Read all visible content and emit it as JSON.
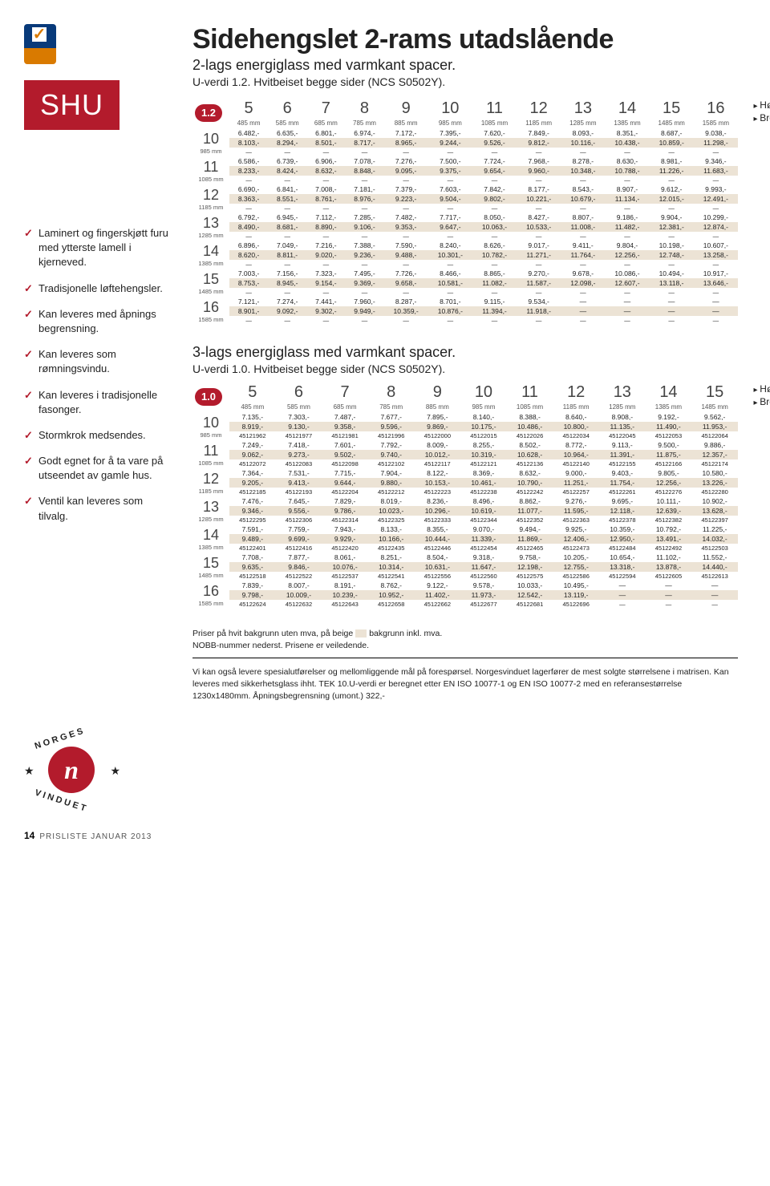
{
  "badge": "SHU",
  "title": "Sidehengslet 2-rams utadslående",
  "sub1": "2-lags energiglass med varmkant spacer.",
  "sub2": "U-verdi 1.2. Hvitbeiset begge sider (NCS S0502Y).",
  "checks": [
    "Laminert og fingerskjøtt furu med ytterste lamell i kjerneved.",
    "Tradisjonelle løftehengsler.",
    "Kan leveres med åpnings begrensning.",
    "Kan leveres som rømningsvindu.",
    "Kan leveres i tradisjonelle fasonger.",
    "Stormkrok medsendes.",
    "Godt egnet for å ta vare på utseendet av gamle hus.",
    "Ventil kan leveres som tilvalg."
  ],
  "hb_h": "Høyde",
  "hb_b": "Bredde",
  "t1": {
    "badge": "1.2",
    "cols": [
      {
        "n": "5",
        "mm": "485 mm"
      },
      {
        "n": "6",
        "mm": "585 mm"
      },
      {
        "n": "7",
        "mm": "685 mm"
      },
      {
        "n": "8",
        "mm": "785 mm"
      },
      {
        "n": "9",
        "mm": "885 mm"
      },
      {
        "n": "10",
        "mm": "985 mm"
      },
      {
        "n": "11",
        "mm": "1085 mm"
      },
      {
        "n": "12",
        "mm": "1185 mm"
      },
      {
        "n": "13",
        "mm": "1285 mm"
      },
      {
        "n": "14",
        "mm": "1385 mm"
      },
      {
        "n": "15",
        "mm": "1485 mm"
      },
      {
        "n": "16",
        "mm": "1585 mm"
      }
    ],
    "rows": [
      {
        "n": "10",
        "mm": "985 mm",
        "a": [
          "6.482,-",
          "6.635,-",
          "6.801,-",
          "6.974,-",
          "7.172,-",
          "7.395,-",
          "7.620,-",
          "7.849,-",
          "8.093,-",
          "8.351,-",
          "8.687,-",
          "9.038,-"
        ],
        "b": [
          "8.103,-",
          "8.294,-",
          "8.501,-",
          "8.717,-",
          "8.965,-",
          "9.244,-",
          "9.526,-",
          "9.812,-",
          "10.116,-",
          "10.438,-",
          "10.859,-",
          "11.298,-"
        ],
        "c": [
          "—",
          "—",
          "—",
          "—",
          "—",
          "—",
          "—",
          "—",
          "—",
          "—",
          "—",
          "—"
        ]
      },
      {
        "n": "11",
        "mm": "1085 mm",
        "a": [
          "6.586,-",
          "6.739,-",
          "6.906,-",
          "7.078,-",
          "7.276,-",
          "7.500,-",
          "7.724,-",
          "7.968,-",
          "8.278,-",
          "8.630,-",
          "8.981,-",
          "9.346,-"
        ],
        "b": [
          "8.233,-",
          "8.424,-",
          "8.632,-",
          "8.848,-",
          "9.095,-",
          "9.375,-",
          "9.654,-",
          "9.960,-",
          "10.348,-",
          "10.788,-",
          "11.226,-",
          "11.683,-"
        ],
        "c": [
          "—",
          "—",
          "—",
          "—",
          "—",
          "—",
          "—",
          "—",
          "—",
          "—",
          "—",
          "—"
        ]
      },
      {
        "n": "12",
        "mm": "1185 mm",
        "a": [
          "6.690,-",
          "6.841,-",
          "7.008,-",
          "7.181,-",
          "7.379,-",
          "7.603,-",
          "7.842,-",
          "8.177,-",
          "8.543,-",
          "8.907,-",
          "9.612,-",
          "9.993,-"
        ],
        "b": [
          "8.363,-",
          "8.551,-",
          "8.761,-",
          "8.976,-",
          "9.223,-",
          "9.504,-",
          "9.802,-",
          "10.221,-",
          "10.679,-",
          "11.134,-",
          "12.015,-",
          "12.491,-"
        ],
        "c": [
          "—",
          "—",
          "—",
          "—",
          "—",
          "—",
          "—",
          "—",
          "—",
          "—",
          "—",
          "—"
        ]
      },
      {
        "n": "13",
        "mm": "1285 mm",
        "a": [
          "6.792,-",
          "6.945,-",
          "7.112,-",
          "7.285,-",
          "7.482,-",
          "7.717,-",
          "8.050,-",
          "8.427,-",
          "8.807,-",
          "9.186,-",
          "9.904,-",
          "10.299,-"
        ],
        "b": [
          "8.490,-",
          "8.681,-",
          "8.890,-",
          "9.106,-",
          "9.353,-",
          "9.647,-",
          "10.063,-",
          "10.533,-",
          "11.008,-",
          "11.482,-",
          "12.381,-",
          "12.874,-"
        ],
        "c": [
          "—",
          "—",
          "—",
          "—",
          "—",
          "—",
          "—",
          "—",
          "—",
          "—",
          "—",
          "—"
        ]
      },
      {
        "n": "14",
        "mm": "1385 mm",
        "a": [
          "6.896,-",
          "7.049,-",
          "7.216,-",
          "7.388,-",
          "7.590,-",
          "8.240,-",
          "8.626,-",
          "9.017,-",
          "9.411,-",
          "9.804,-",
          "10.198,-",
          "10.607,-"
        ],
        "b": [
          "8.620,-",
          "8.811,-",
          "9.020,-",
          "9.236,-",
          "9.488,-",
          "10.301,-",
          "10.782,-",
          "11.271,-",
          "11.764,-",
          "12.256,-",
          "12.748,-",
          "13.258,-"
        ],
        "c": [
          "—",
          "—",
          "—",
          "—",
          "—",
          "—",
          "—",
          "—",
          "—",
          "—",
          "—",
          "—"
        ]
      },
      {
        "n": "15",
        "mm": "1485 mm",
        "a": [
          "7.003,-",
          "7.156,-",
          "7.323,-",
          "7.495,-",
          "7.726,-",
          "8.466,-",
          "8.865,-",
          "9.270,-",
          "9.678,-",
          "10.086,-",
          "10.494,-",
          "10.917,-"
        ],
        "b": [
          "8.753,-",
          "8.945,-",
          "9.154,-",
          "9.369,-",
          "9.658,-",
          "10.581,-",
          "11.082,-",
          "11.587,-",
          "12.098,-",
          "12.607,-",
          "13.118,-",
          "13.646,-"
        ],
        "c": [
          "—",
          "—",
          "—",
          "—",
          "—",
          "—",
          "—",
          "—",
          "—",
          "—",
          "—",
          "—"
        ]
      },
      {
        "n": "16",
        "mm": "1585 mm",
        "a": [
          "7.121,-",
          "7.274,-",
          "7.441,-",
          "7.960,-",
          "8.287,-",
          "8.701,-",
          "9.115,-",
          "9.534,-",
          "—",
          "—",
          "—",
          "—"
        ],
        "b": [
          "8.901,-",
          "9.092,-",
          "9.302,-",
          "9.949,-",
          "10.359,-",
          "10.876,-",
          "11.394,-",
          "11.918,-",
          "—",
          "—",
          "—",
          "—"
        ],
        "c": [
          "—",
          "—",
          "—",
          "—",
          "—",
          "—",
          "—",
          "—",
          "—",
          "—",
          "—",
          "—"
        ]
      }
    ]
  },
  "sec3_h": "3-lags energiglass med varmkant spacer.",
  "sec3_s": "U-verdi 1.0. Hvitbeiset begge sider (NCS S0502Y).",
  "t2": {
    "badge": "1.0",
    "cols": [
      {
        "n": "5",
        "mm": "485 mm"
      },
      {
        "n": "6",
        "mm": "585 mm"
      },
      {
        "n": "7",
        "mm": "685 mm"
      },
      {
        "n": "8",
        "mm": "785 mm"
      },
      {
        "n": "9",
        "mm": "885 mm"
      },
      {
        "n": "10",
        "mm": "985 mm"
      },
      {
        "n": "11",
        "mm": "1085 mm"
      },
      {
        "n": "12",
        "mm": "1185 mm"
      },
      {
        "n": "13",
        "mm": "1285 mm"
      },
      {
        "n": "14",
        "mm": "1385 mm"
      },
      {
        "n": "15",
        "mm": "1485 mm"
      }
    ],
    "rows": [
      {
        "n": "10",
        "mm": "985 mm",
        "a": [
          "7.135,-",
          "7.303,-",
          "7.487,-",
          "7.677,-",
          "7.895,-",
          "8.140,-",
          "8.388,-",
          "8.640,-",
          "8.908,-",
          "9.192,-",
          "9.562,-"
        ],
        "b": [
          "8.919,-",
          "9.130,-",
          "9.358,-",
          "9.596,-",
          "9.869,-",
          "10.175,-",
          "10.486,-",
          "10.800,-",
          "11.135,-",
          "11.490,-",
          "11.953,-"
        ],
        "c": [
          "45121962",
          "45121977",
          "45121981",
          "45121996",
          "45122000",
          "45122015",
          "45122026",
          "45122034",
          "45122045",
          "45122053",
          "45122064"
        ]
      },
      {
        "n": "11",
        "mm": "1085 mm",
        "a": [
          "7.249,-",
          "7.418,-",
          "7.601,-",
          "7.792,-",
          "8.009,-",
          "8.255,-",
          "8.502,-",
          "8.772,-",
          "9.113,-",
          "9.500,-",
          "9.886,-"
        ],
        "b": [
          "9.062,-",
          "9.273,-",
          "9.502,-",
          "9.740,-",
          "10.012,-",
          "10.319,-",
          "10.628,-",
          "10.964,-",
          "11.391,-",
          "11.875,-",
          "12.357,-"
        ],
        "c": [
          "45122072",
          "45122083",
          "45122098",
          "45122102",
          "45122117",
          "45122121",
          "45122136",
          "45122140",
          "45122155",
          "45122166",
          "45122174"
        ]
      },
      {
        "n": "12",
        "mm": "1185 mm",
        "a": [
          "7.364,-",
          "7.531,-",
          "7.715,-",
          "7.904,-",
          "8.122,-",
          "8.369,-",
          "8.632,-",
          "9.000,-",
          "9.403,-",
          "9.805,-",
          "10.580,-"
        ],
        "b": [
          "9.205,-",
          "9.413,-",
          "9.644,-",
          "9.880,-",
          "10.153,-",
          "10.461,-",
          "10.790,-",
          "11.251,-",
          "11.754,-",
          "12.256,-",
          "13.226,-"
        ],
        "c": [
          "45122185",
          "45122193",
          "45122204",
          "45122212",
          "45122223",
          "45122238",
          "45122242",
          "45122257",
          "45122261",
          "45122276",
          "45122280"
        ]
      },
      {
        "n": "13",
        "mm": "1285 mm",
        "a": [
          "7.476,-",
          "7.645,-",
          "7.829,-",
          "8.019,-",
          "8.236,-",
          "8.496,-",
          "8.862,-",
          "9.276,-",
          "9.695,-",
          "10.111,-",
          "10.902,-"
        ],
        "b": [
          "9.346,-",
          "9.556,-",
          "9.786,-",
          "10.023,-",
          "10.296,-",
          "10.619,-",
          "11.077,-",
          "11.595,-",
          "12.118,-",
          "12.639,-",
          "13.628,-"
        ],
        "c": [
          "45122295",
          "45122306",
          "45122314",
          "45122325",
          "45122333",
          "45122344",
          "45122352",
          "45122363",
          "45122378",
          "45122382",
          "45122397"
        ]
      },
      {
        "n": "14",
        "mm": "1385 mm",
        "a": [
          "7.591,-",
          "7.759,-",
          "7.943,-",
          "8.133,-",
          "8.355,-",
          "9.070,-",
          "9.494,-",
          "9.925,-",
          "10.359,-",
          "10.792,-",
          "11.225,-"
        ],
        "b": [
          "9.489,-",
          "9.699,-",
          "9.929,-",
          "10.166,-",
          "10.444,-",
          "11.339,-",
          "11.869,-",
          "12.406,-",
          "12.950,-",
          "13.491,-",
          "14.032,-"
        ],
        "c": [
          "45122401",
          "45122416",
          "45122420",
          "45122435",
          "45122446",
          "45122454",
          "45122465",
          "45122473",
          "45122484",
          "45122492",
          "45122503"
        ]
      },
      {
        "n": "15",
        "mm": "1485 mm",
        "a": [
          "7.708,-",
          "7.877,-",
          "8.061,-",
          "8.251,-",
          "8.504,-",
          "9.318,-",
          "9.758,-",
          "10.205,-",
          "10.654,-",
          "11.102,-",
          "11.552,-"
        ],
        "b": [
          "9.635,-",
          "9.846,-",
          "10.076,-",
          "10.314,-",
          "10.631,-",
          "11.647,-",
          "12.198,-",
          "12.755,-",
          "13.318,-",
          "13.878,-",
          "14.440,-"
        ],
        "c": [
          "45122518",
          "45122522",
          "45122537",
          "45122541",
          "45122556",
          "45122560",
          "45122575",
          "45122586",
          "45122594",
          "45122605",
          "45122613"
        ]
      },
      {
        "n": "16",
        "mm": "1585 mm",
        "a": [
          "7.839,-",
          "8.007,-",
          "8.191,-",
          "8.762,-",
          "9.122,-",
          "9.578,-",
          "10.033,-",
          "10.495,-",
          "—",
          "—",
          "—"
        ],
        "b": [
          "9.798,-",
          "10.009,-",
          "10.239,-",
          "10.952,-",
          "11.402,-",
          "11.973,-",
          "12.542,-",
          "13.119,-",
          "—",
          "—",
          "—"
        ],
        "c": [
          "45122624",
          "45122632",
          "45122643",
          "45122658",
          "45122662",
          "45122677",
          "45122681",
          "45122696",
          "—",
          "—",
          "—"
        ]
      }
    ]
  },
  "note1a": "Priser på hvit bakgrunn uten mva, på beige",
  "note1b": "bakgrunn inkl. mva.",
  "note2": "NOBB-nummer nederst. Prisene er veiledende.",
  "note3": "Vi kan også levere spesialutførelser og mellomliggende mål på forespørsel. Norgesvinduet lagerfører de mest solgte størrelsene i matrisen. Kan leveres med sikkerhetsglass ihht. TEK 10.U-verdi er beregnet etter EN ISO 10077-1 og EN ISO 10077-2 med en referansestørrelse 1230x1480mm. Åpningsbegrensning (umont.) 322,-",
  "footer_page": "14",
  "footer_txt": "PRISLISTE JANUAR 2013",
  "colors": {
    "red": "#b31b2c",
    "beige": "#ece3d5"
  }
}
